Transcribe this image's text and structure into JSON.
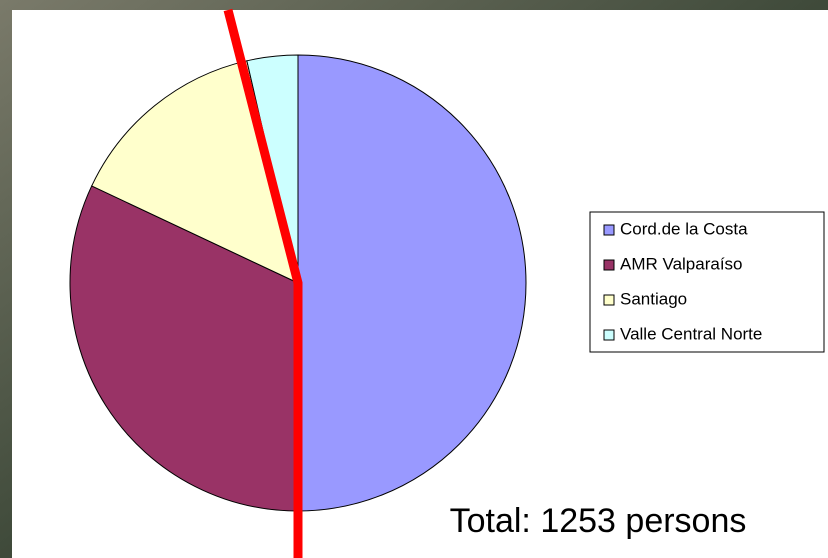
{
  "chart_data": {
    "type": "pie",
    "categories": [
      "Cord.de la Costa",
      "AMR Valparaíso",
      "Santiago",
      "Valle Central Norte"
    ],
    "values": [
      50,
      32,
      14.4,
      3.6
    ],
    "colors": [
      "#9999ff",
      "#993366",
      "#ffffcc",
      "#ccffff"
    ],
    "legend": "right",
    "annotation": "Total: 1253 persons"
  }
}
